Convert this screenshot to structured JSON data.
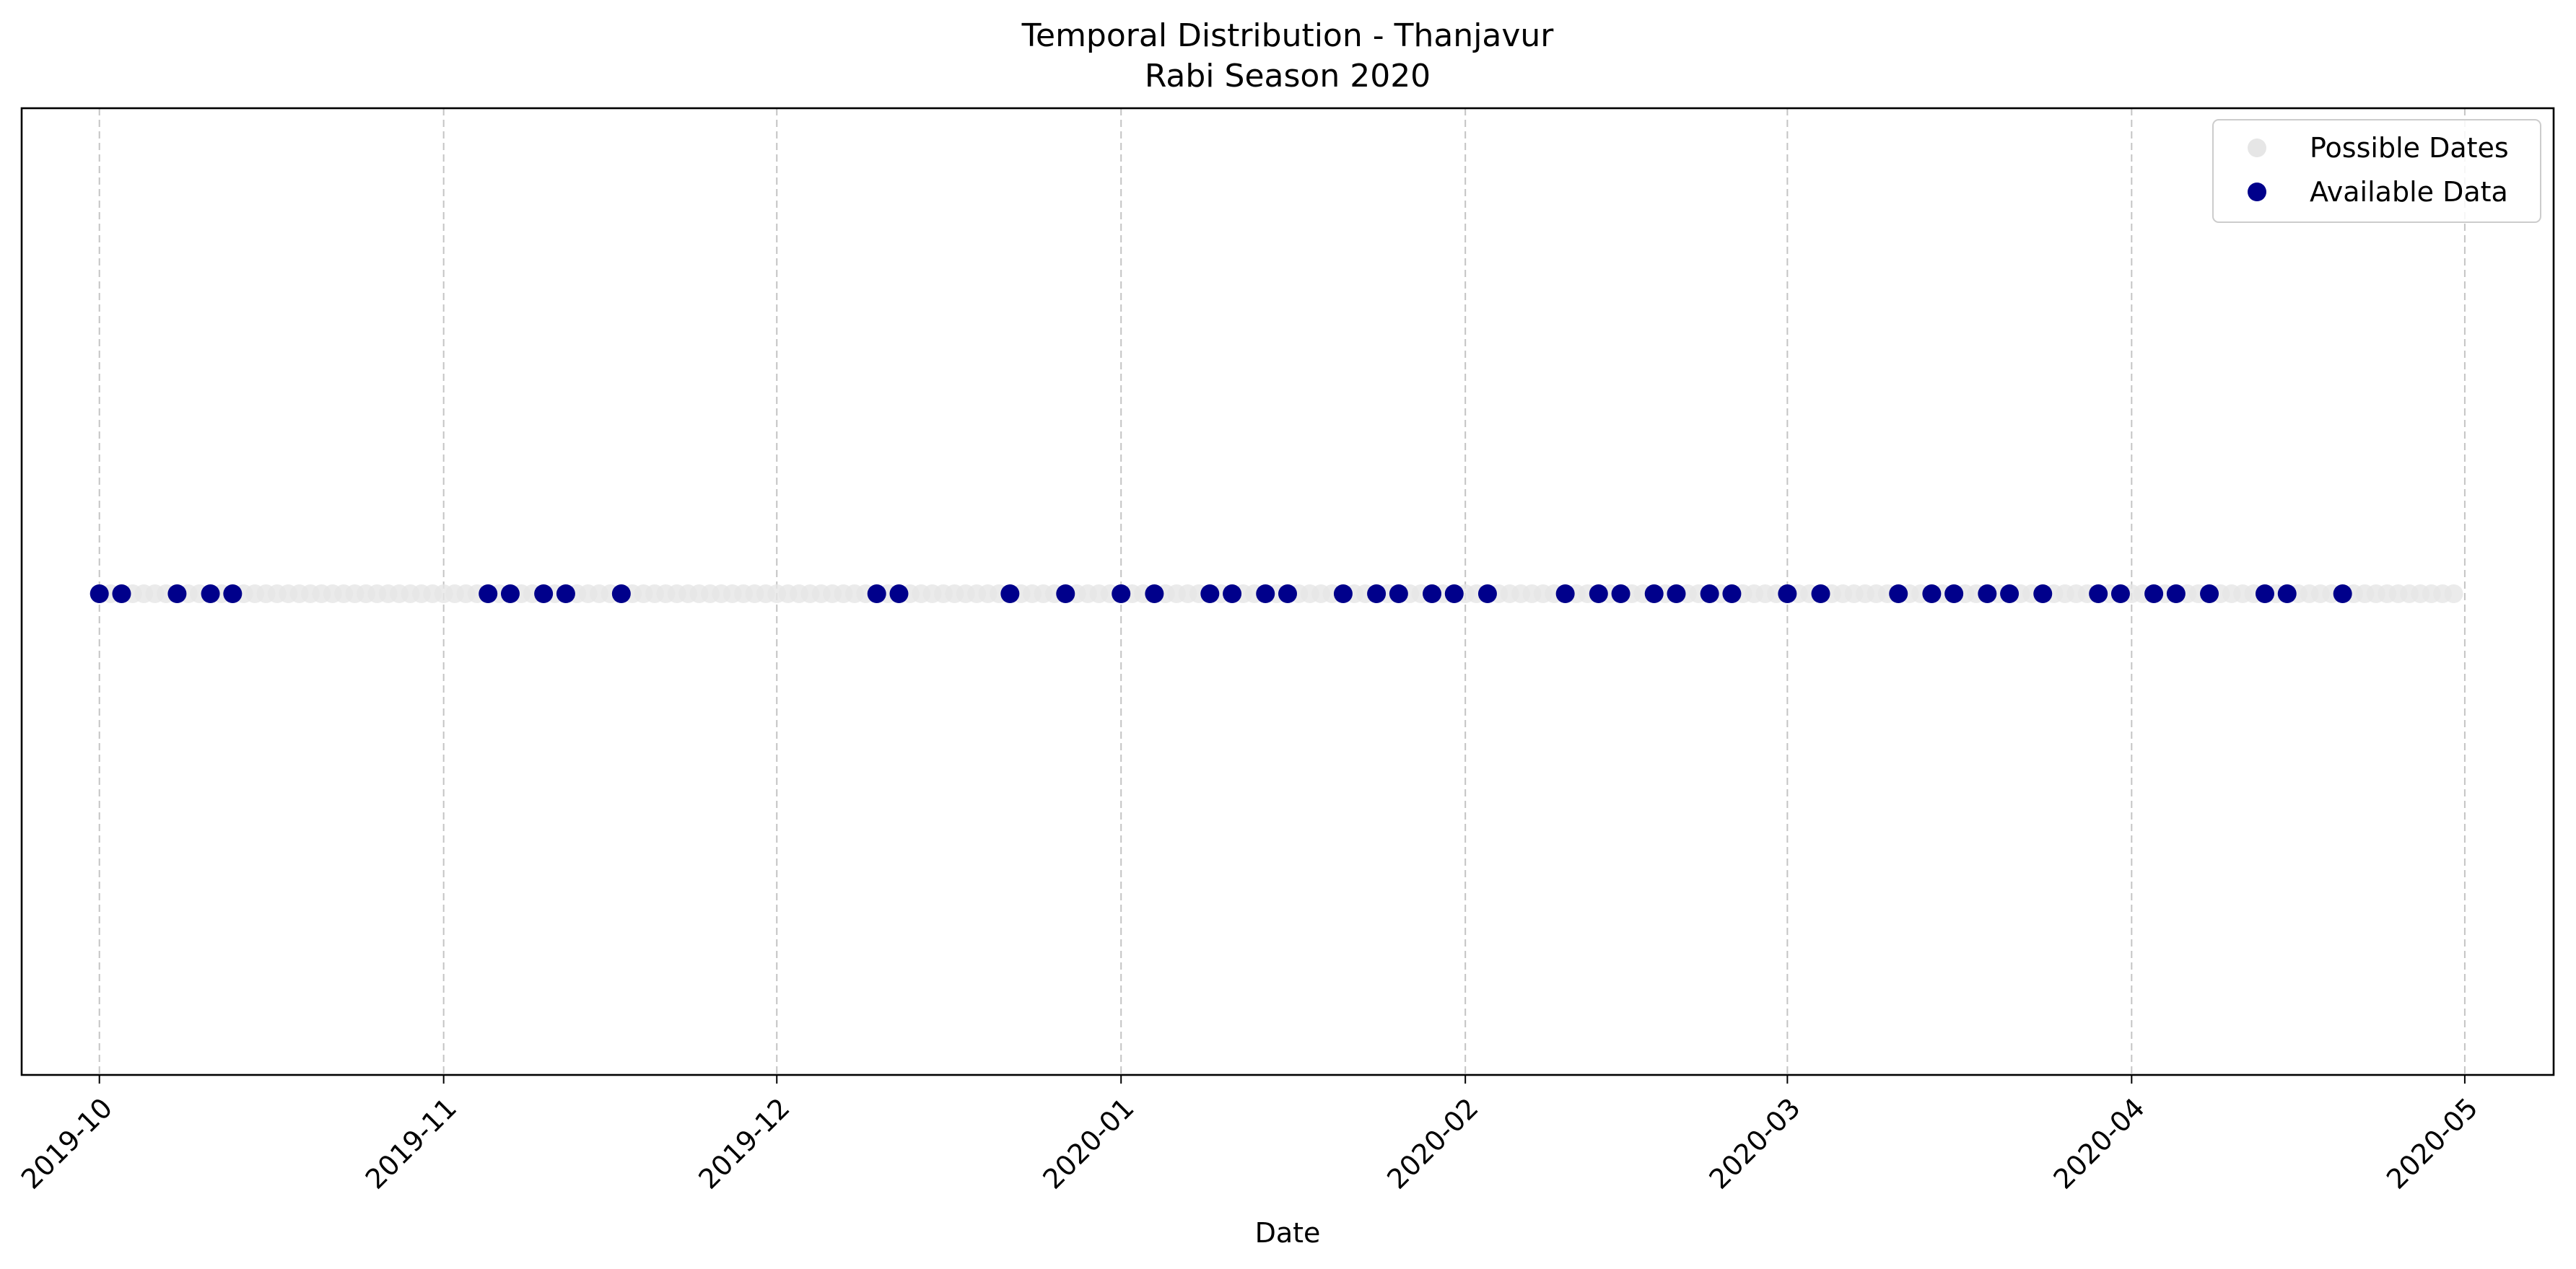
{
  "chart_data": {
    "type": "scatter",
    "title": "Temporal Distribution - Thanjavur",
    "subtitle": "Rabi Season 2020",
    "xlabel": "Date",
    "ylabel": "",
    "xlim": [
      "2019-09-24",
      "2020-05-09"
    ],
    "x_ticks": [
      "2019-10-01",
      "2019-11-01",
      "2019-12-01",
      "2020-01-01",
      "2020-02-01",
      "2020-03-01",
      "2020-04-01",
      "2020-05-01"
    ],
    "x_tick_labels": [
      "2019-10",
      "2019-11",
      "2019-12",
      "2020-01",
      "2020-02",
      "2020-03",
      "2020-04",
      "2020-05"
    ],
    "grid": "x-dashed",
    "legend_position": "top-right",
    "series": [
      {
        "name": "Possible Dates",
        "color": "#e6e6e6",
        "marker": "circle",
        "y": 1,
        "x_range": [
          "2019-10-01",
          "2020-04-30"
        ],
        "step_days": 1
      },
      {
        "name": "Available Data",
        "color": "#00008b",
        "marker": "circle",
        "y": 1,
        "x": [
          "2019-10-01",
          "2019-10-03",
          "2019-10-08",
          "2019-10-11",
          "2019-10-13",
          "2019-11-05",
          "2019-11-07",
          "2019-11-10",
          "2019-11-12",
          "2019-11-17",
          "2019-12-10",
          "2019-12-12",
          "2019-12-22",
          "2019-12-27",
          "2020-01-01",
          "2020-01-04",
          "2020-01-09",
          "2020-01-11",
          "2020-01-14",
          "2020-01-16",
          "2020-01-21",
          "2020-01-24",
          "2020-01-26",
          "2020-01-29",
          "2020-01-31",
          "2020-02-03",
          "2020-02-10",
          "2020-02-13",
          "2020-02-15",
          "2020-02-18",
          "2020-02-20",
          "2020-02-23",
          "2020-02-25",
          "2020-03-01",
          "2020-03-04",
          "2020-03-11",
          "2020-03-14",
          "2020-03-16",
          "2020-03-19",
          "2020-03-21",
          "2020-03-24",
          "2020-03-29",
          "2020-03-31",
          "2020-04-03",
          "2020-04-05",
          "2020-04-08",
          "2020-04-13",
          "2020-04-15",
          "2020-04-20"
        ]
      }
    ]
  }
}
